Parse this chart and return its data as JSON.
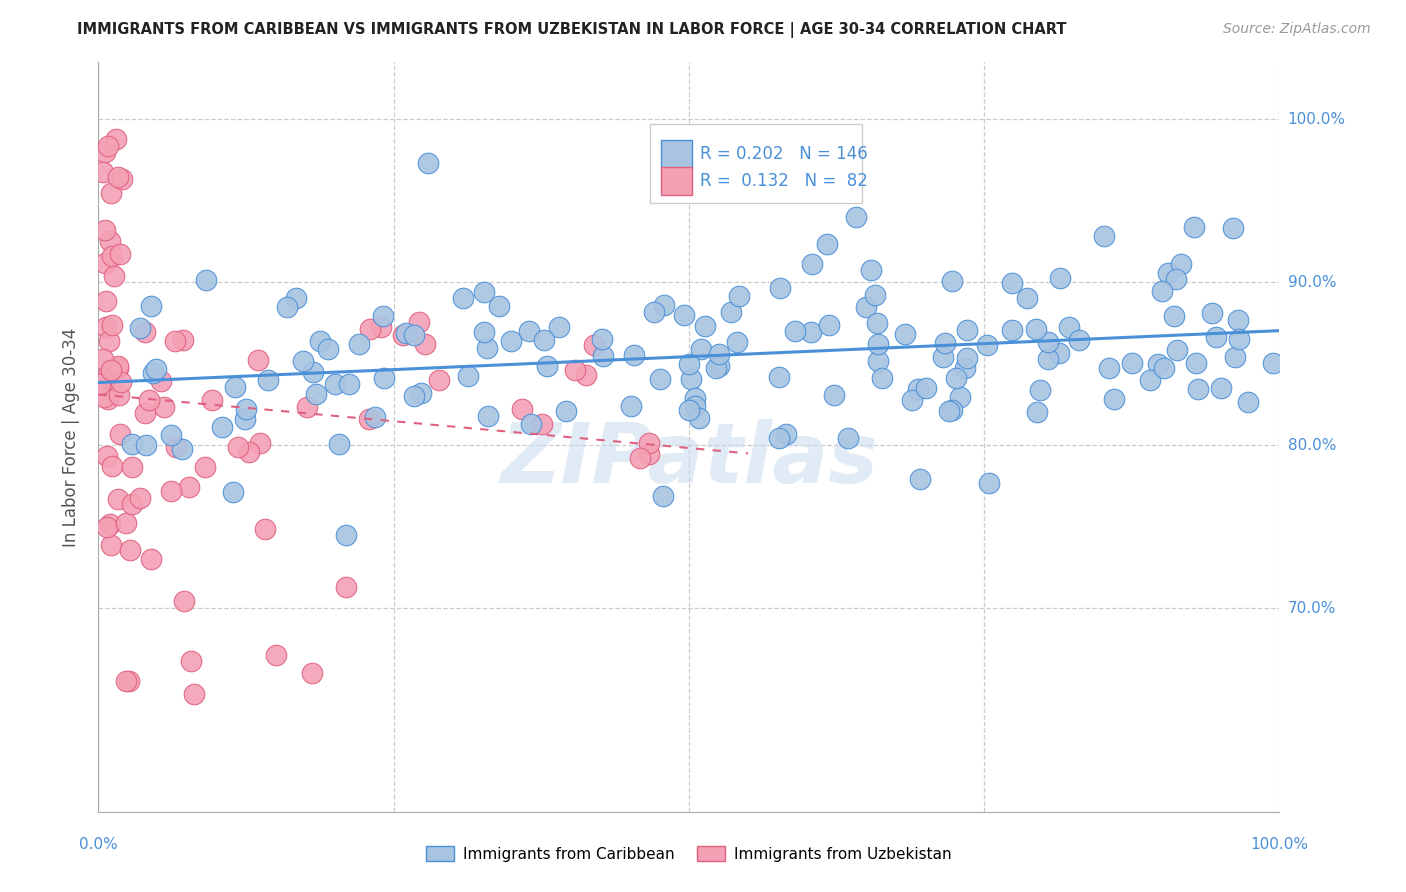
{
  "title": "IMMIGRANTS FROM CARIBBEAN VS IMMIGRANTS FROM UZBEKISTAN IN LABOR FORCE | AGE 30-34 CORRELATION CHART",
  "source": "Source: ZipAtlas.com",
  "ylabel": "In Labor Force | Age 30-34",
  "xlim": [
    0.0,
    1.0
  ],
  "ylim": [
    0.575,
    1.035
  ],
  "ytick_vals": [
    0.7,
    0.8,
    0.9,
    1.0
  ],
  "ytick_labels": [
    "70.0%",
    "80.0%",
    "90.0%",
    "100.0%"
  ],
  "xtick_vals": [
    0.0,
    0.25,
    0.5,
    0.75,
    1.0
  ],
  "xtick_show": [
    "0.0%",
    "",
    "",
    "",
    "100.0%"
  ],
  "caribbean_R": 0.202,
  "caribbean_N": 146,
  "uzbekistan_R": 0.132,
  "uzbekistan_N": 82,
  "caribbean_color": "#a8c4e0",
  "uzbekistan_color": "#f4a0b5",
  "trend_blue": "#4a90d9",
  "trend_pink": "#e06080",
  "watermark": "ZIPatlas",
  "background": "#ffffff",
  "grid_color": "#cccccc",
  "title_color": "#222222",
  "source_color": "#999999",
  "label_color": "#555555",
  "tick_color": "#4a90d9",
  "legend_border": "#cccccc"
}
